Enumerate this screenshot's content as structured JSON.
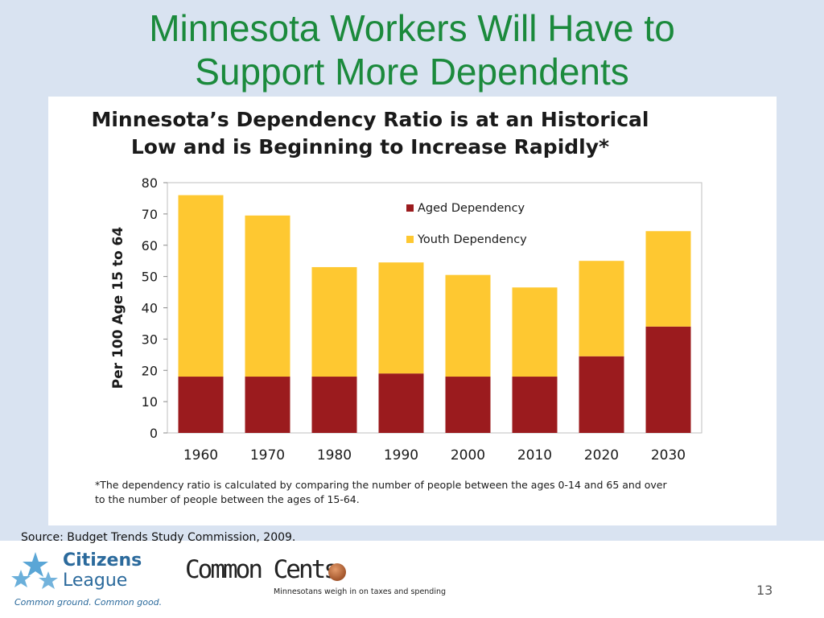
{
  "slide": {
    "title_line1": "Minnesota Workers Will Have to",
    "title_line2": "Support More Dependents",
    "source": "Source: Budget Trends Study Commission, 2009.",
    "page_number": "13"
  },
  "logos": {
    "citizens_league_name1": "Citizens",
    "citizens_league_name2": "League",
    "citizens_league_tagline": "Common ground. Common good.",
    "common_cents_name": "Common Cents",
    "common_cents_tagline": "Minnesotans weigh in on taxes and spending"
  },
  "chart_data": {
    "type": "bar",
    "stacked": true,
    "title_line1": "Minnesota’s Dependency Ratio is at an Historical",
    "title_line2": "Low and is Beginning to Increase Rapidly*",
    "ylabel": "Per 100 Age 15 to 64",
    "xlabel": "",
    "ylim": [
      0,
      80
    ],
    "yticks": [
      0,
      10,
      20,
      30,
      40,
      50,
      60,
      70,
      80
    ],
    "categories": [
      "1960",
      "1970",
      "1980",
      "1990",
      "2000",
      "2010",
      "2020",
      "2030"
    ],
    "series": [
      {
        "name": "Aged Dependency",
        "color": "#9b1b1e",
        "values": [
          18,
          18,
          18,
          19,
          18,
          18,
          24.5,
          34
        ]
      },
      {
        "name": "Youth Dependency",
        "color": "#fec831",
        "values": [
          58,
          51.5,
          35,
          35.5,
          32.5,
          28.5,
          30.5,
          30.5
        ]
      }
    ],
    "legend_position": "top-right",
    "grid": false,
    "footnote_line1": "*The dependency ratio is calculated by comparing the number of people between the ages 0-14 and 65 and over",
    "footnote_line2": "to the number of people between the ages of 15-64."
  }
}
